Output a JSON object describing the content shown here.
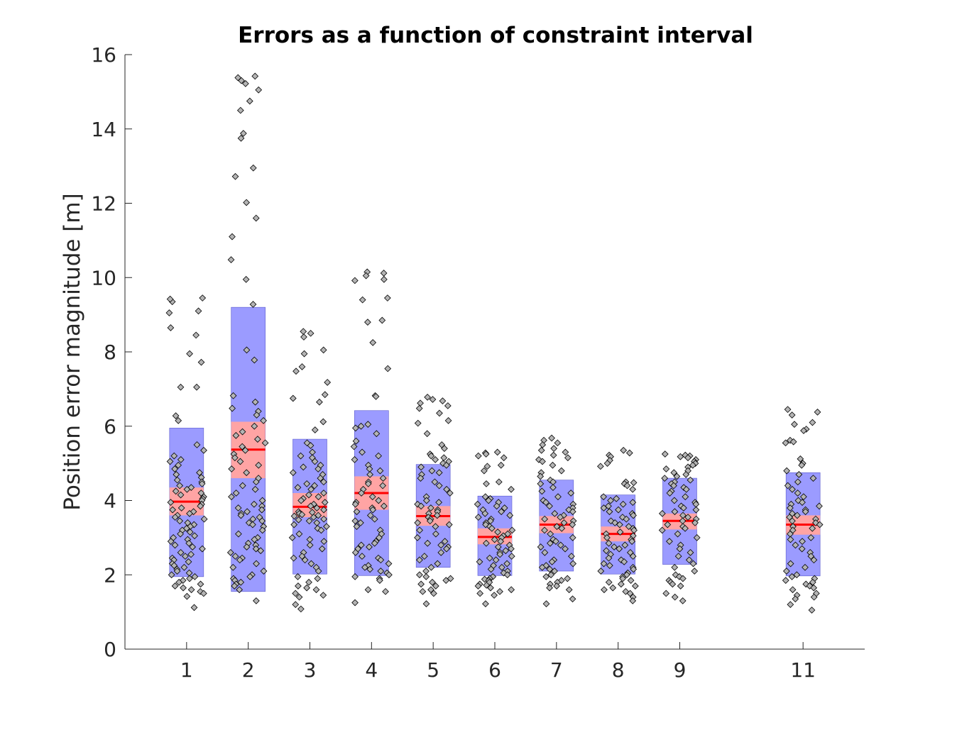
{
  "chart_data": {
    "type": "scatter",
    "subtype": "notched-box-jitter",
    "title": "Errors as a function of constraint interval",
    "xlabel": "",
    "ylabel": "Position error magnitude [m]",
    "ylim": [
      0,
      16
    ],
    "xlim": [
      0,
      12
    ],
    "yticks": [
      "0",
      "2",
      "4",
      "6",
      "8",
      "10",
      "12",
      "14",
      "16"
    ],
    "xticks": [
      "1",
      "2",
      "3",
      "4",
      "5",
      "6",
      "7",
      "8",
      "9",
      "11"
    ],
    "grid": false,
    "colors": {
      "box": "#9b9bff",
      "ci": "#ffa4a4",
      "mean": "#ff0000",
      "marker": "#b4b4b4",
      "marker_edge": "#000000"
    },
    "groups": [
      {
        "x": 1,
        "mean": 3.97,
        "sd_low": 1.95,
        "sd_high": 5.95,
        "ci_low": 3.6,
        "ci_high": 4.35,
        "points": [
          9.35,
          9.1,
          9.45,
          9.42,
          9.05,
          8.65,
          8.45,
          7.95,
          7.72,
          7.05,
          7.05,
          6.28,
          6.15,
          5.5,
          5.35,
          5.2,
          5.1,
          5.05,
          4.95,
          4.85,
          4.75,
          4.7,
          4.62,
          4.55,
          4.5,
          4.45,
          4.4,
          4.35,
          4.3,
          4.25,
          4.2,
          4.15,
          4.1,
          4.05,
          4.0,
          3.95,
          3.9,
          3.85,
          3.8,
          3.75,
          3.7,
          3.65,
          3.6,
          3.55,
          3.5,
          3.45,
          3.4,
          3.35,
          3.3,
          3.25,
          3.2,
          3.15,
          3.1,
          3.05,
          3.0,
          2.95,
          2.9,
          2.85,
          2.8,
          2.75,
          2.7,
          2.6,
          2.55,
          2.5,
          2.45,
          2.4,
          2.35,
          2.3,
          2.25,
          2.2,
          2.15,
          2.1,
          2.05,
          2.0,
          1.95,
          1.9,
          1.85,
          1.8,
          1.75,
          1.7,
          1.65,
          1.6,
          1.55,
          1.5,
          1.42,
          1.12
        ]
      },
      {
        "x": 2,
        "mean": 5.37,
        "sd_low": 1.55,
        "sd_high": 9.2,
        "ci_low": 4.6,
        "ci_high": 6.12,
        "points": [
          15.42,
          15.38,
          15.3,
          15.22,
          15.05,
          14.75,
          14.5,
          13.88,
          13.75,
          12.95,
          12.72,
          12.02,
          11.6,
          11.1,
          10.48,
          9.95,
          9.28,
          8.05,
          7.78,
          6.82,
          6.65,
          6.48,
          6.4,
          6.3,
          6.15,
          6.0,
          5.85,
          5.75,
          5.65,
          5.55,
          5.45,
          5.35,
          5.25,
          5.15,
          5.05,
          4.95,
          4.85,
          4.75,
          4.6,
          4.5,
          4.4,
          4.3,
          4.2,
          4.1,
          4.0,
          3.9,
          3.85,
          3.8,
          3.75,
          3.7,
          3.65,
          3.6,
          3.55,
          3.5,
          3.45,
          3.4,
          3.35,
          3.3,
          3.2,
          3.1,
          3.0,
          2.95,
          2.85,
          2.8,
          2.75,
          2.7,
          2.65,
          2.6,
          2.5,
          2.45,
          2.4,
          2.3,
          2.2,
          2.1,
          2.0,
          1.95,
          1.9,
          1.85,
          1.8,
          1.75,
          1.7,
          1.6,
          1.3
        ]
      },
      {
        "x": 3,
        "mean": 3.83,
        "sd_low": 2.02,
        "sd_high": 5.65,
        "ci_low": 3.55,
        "ci_high": 4.2,
        "points": [
          8.55,
          8.5,
          8.4,
          8.05,
          7.95,
          7.6,
          7.48,
          7.18,
          6.85,
          6.75,
          6.65,
          6.12,
          5.9,
          5.55,
          5.48,
          5.3,
          5.2,
          5.15,
          5.05,
          4.95,
          4.9,
          4.85,
          4.75,
          4.7,
          4.6,
          4.5,
          4.45,
          4.4,
          4.35,
          4.3,
          4.2,
          4.15,
          4.1,
          4.05,
          4.0,
          3.95,
          3.9,
          3.85,
          3.8,
          3.75,
          3.7,
          3.68,
          3.65,
          3.62,
          3.6,
          3.58,
          3.55,
          3.5,
          3.48,
          3.45,
          3.4,
          3.35,
          3.3,
          3.25,
          3.2,
          3.1,
          3.0,
          2.95,
          2.9,
          2.8,
          2.7,
          2.6,
          2.5,
          2.45,
          2.4,
          2.3,
          2.2,
          2.1,
          1.95,
          1.9,
          1.8,
          1.7,
          1.65,
          1.6,
          1.5,
          1.45,
          1.4,
          1.2,
          1.08
        ]
      },
      {
        "x": 4,
        "mean": 4.2,
        "sd_low": 1.98,
        "sd_high": 6.42,
        "ci_low": 3.75,
        "ci_high": 4.65,
        "points": [
          10.15,
          10.12,
          10.05,
          9.95,
          9.92,
          9.45,
          9.4,
          8.85,
          8.8,
          8.25,
          7.55,
          6.82,
          6.8,
          6.05,
          6.0,
          5.95,
          5.8,
          5.6,
          5.45,
          5.3,
          5.2,
          5.1,
          4.95,
          4.85,
          4.8,
          4.7,
          4.6,
          4.5,
          4.45,
          4.4,
          4.3,
          4.2,
          4.1,
          4.0,
          3.95,
          3.9,
          3.85,
          3.8,
          3.75,
          3.7,
          3.6,
          3.5,
          3.45,
          3.4,
          3.3,
          3.2,
          3.1,
          3.0,
          2.9,
          2.85,
          2.8,
          2.75,
          2.7,
          2.6,
          2.5,
          2.45,
          2.4,
          2.3,
          2.25,
          2.2,
          2.15,
          2.1,
          2.05,
          2.0,
          1.95,
          1.9,
          1.85,
          1.6,
          1.55,
          1.25
        ]
      },
      {
        "x": 5,
        "mean": 3.58,
        "sd_low": 2.2,
        "sd_high": 4.97,
        "ci_low": 3.32,
        "ci_high": 3.85,
        "points": [
          6.78,
          6.72,
          6.68,
          6.62,
          6.55,
          6.48,
          6.35,
          6.15,
          6.08,
          5.8,
          5.5,
          5.4,
          5.25,
          5.2,
          5.15,
          5.1,
          5.05,
          5.0,
          4.95,
          4.9,
          4.8,
          4.75,
          4.7,
          4.6,
          4.5,
          4.4,
          4.3,
          4.2,
          4.1,
          4.0,
          3.95,
          3.9,
          3.85,
          3.8,
          3.75,
          3.7,
          3.65,
          3.6,
          3.55,
          3.5,
          3.45,
          3.4,
          3.35,
          3.3,
          3.2,
          3.1,
          3.0,
          2.9,
          2.85,
          2.8,
          2.75,
          2.7,
          2.6,
          2.5,
          2.4,
          2.3,
          2.2,
          2.1,
          2.0,
          1.95,
          1.9,
          1.85,
          1.8,
          1.75,
          1.7,
          1.6,
          1.55,
          1.5,
          1.22
        ]
      },
      {
        "x": 6,
        "mean": 3.02,
        "sd_low": 1.98,
        "sd_high": 4.12,
        "ci_low": 2.82,
        "ci_high": 3.25,
        "points": [
          5.3,
          5.28,
          5.25,
          5.2,
          5.15,
          4.95,
          4.92,
          4.8,
          4.5,
          4.45,
          4.3,
          4.1,
          4.05,
          4.0,
          3.95,
          3.9,
          3.85,
          3.8,
          3.75,
          3.7,
          3.65,
          3.6,
          3.55,
          3.5,
          3.45,
          3.4,
          3.35,
          3.3,
          3.25,
          3.2,
          3.15,
          3.1,
          3.05,
          3.0,
          2.95,
          2.9,
          2.85,
          2.8,
          2.75,
          2.7,
          2.65,
          2.6,
          2.55,
          2.5,
          2.45,
          2.4,
          2.35,
          2.3,
          2.25,
          2.2,
          2.15,
          2.1,
          2.05,
          2.0,
          1.95,
          1.9,
          1.88,
          1.85,
          1.8,
          1.75,
          1.72,
          1.7,
          1.65,
          1.6,
          1.55,
          1.5,
          1.45,
          1.22
        ]
      },
      {
        "x": 7,
        "mean": 3.35,
        "sd_low": 2.1,
        "sd_high": 4.55,
        "ci_low": 3.12,
        "ci_high": 3.58,
        "points": [
          5.68,
          5.62,
          5.55,
          5.5,
          5.4,
          5.35,
          5.3,
          5.22,
          5.15,
          5.1,
          5.05,
          4.95,
          4.8,
          4.75,
          4.65,
          4.55,
          4.5,
          4.45,
          4.35,
          4.25,
          4.2,
          4.1,
          4.0,
          3.95,
          3.9,
          3.85,
          3.8,
          3.75,
          3.7,
          3.65,
          3.6,
          3.55,
          3.5,
          3.45,
          3.4,
          3.35,
          3.3,
          3.25,
          3.2,
          3.1,
          3.0,
          2.95,
          2.9,
          2.85,
          2.8,
          2.75,
          2.7,
          2.6,
          2.5,
          2.4,
          2.35,
          2.3,
          2.25,
          2.2,
          2.15,
          2.1,
          2.0,
          1.95,
          1.9,
          1.85,
          1.8,
          1.75,
          1.7,
          1.65,
          1.6,
          1.35,
          1.22
        ]
      },
      {
        "x": 8,
        "mean": 3.1,
        "sd_low": 2.02,
        "sd_high": 4.15,
        "ci_low": 2.9,
        "ci_high": 3.3,
        "points": [
          5.35,
          5.28,
          5.22,
          5.18,
          5.08,
          5.0,
          4.92,
          4.5,
          4.48,
          4.45,
          4.4,
          4.3,
          4.1,
          4.05,
          4.0,
          3.95,
          3.9,
          3.85,
          3.8,
          3.75,
          3.7,
          3.65,
          3.6,
          3.55,
          3.5,
          3.45,
          3.4,
          3.35,
          3.3,
          3.25,
          3.2,
          3.15,
          3.1,
          3.05,
          3.0,
          2.95,
          2.9,
          2.85,
          2.8,
          2.75,
          2.7,
          2.65,
          2.6,
          2.55,
          2.5,
          2.45,
          2.4,
          2.35,
          2.3,
          2.25,
          2.2,
          2.15,
          2.1,
          2.05,
          2.0,
          1.95,
          1.9,
          1.85,
          1.8,
          1.75,
          1.7,
          1.65,
          1.6,
          1.55,
          1.5,
          1.4,
          1.3
        ]
      },
      {
        "x": 9,
        "mean": 3.45,
        "sd_low": 2.28,
        "sd_high": 4.6,
        "ci_low": 3.22,
        "ci_high": 3.65,
        "points": [
          5.25,
          5.22,
          5.2,
          5.18,
          5.15,
          5.1,
          5.05,
          5.0,
          4.95,
          4.9,
          4.85,
          4.8,
          4.75,
          4.7,
          4.65,
          4.6,
          4.55,
          4.5,
          4.45,
          4.4,
          4.35,
          4.3,
          4.25,
          4.2,
          4.1,
          4.0,
          3.95,
          3.9,
          3.85,
          3.8,
          3.75,
          3.7,
          3.65,
          3.6,
          3.55,
          3.5,
          3.45,
          3.4,
          3.35,
          3.3,
          3.25,
          3.2,
          3.1,
          3.0,
          2.9,
          2.8,
          2.7,
          2.6,
          2.5,
          2.4,
          2.3,
          2.2,
          2.1,
          2.0,
          1.95,
          1.9,
          1.85,
          1.8,
          1.75,
          1.7,
          1.5,
          1.4,
          1.3
        ]
      },
      {
        "x": 11,
        "mean": 3.35,
        "sd_low": 1.97,
        "sd_high": 4.75,
        "ci_low": 3.08,
        "ci_high": 3.6,
        "points": [
          6.45,
          6.38,
          6.3,
          6.1,
          6.05,
          5.92,
          5.88,
          5.62,
          5.58,
          5.55,
          5.12,
          5.0,
          4.95,
          4.8,
          4.7,
          4.6,
          4.5,
          4.4,
          4.3,
          4.2,
          4.1,
          4.0,
          3.95,
          3.9,
          3.85,
          3.8,
          3.75,
          3.7,
          3.65,
          3.6,
          3.55,
          3.5,
          3.45,
          3.4,
          3.35,
          3.3,
          3.25,
          3.2,
          3.1,
          3.0,
          2.95,
          2.9,
          2.8,
          2.7,
          2.6,
          2.5,
          2.4,
          2.3,
          2.2,
          2.1,
          2.0,
          1.95,
          1.9,
          1.85,
          1.8,
          1.75,
          1.7,
          1.65,
          1.6,
          1.5,
          1.45,
          1.4,
          1.35,
          1.2,
          1.05
        ]
      }
    ]
  }
}
